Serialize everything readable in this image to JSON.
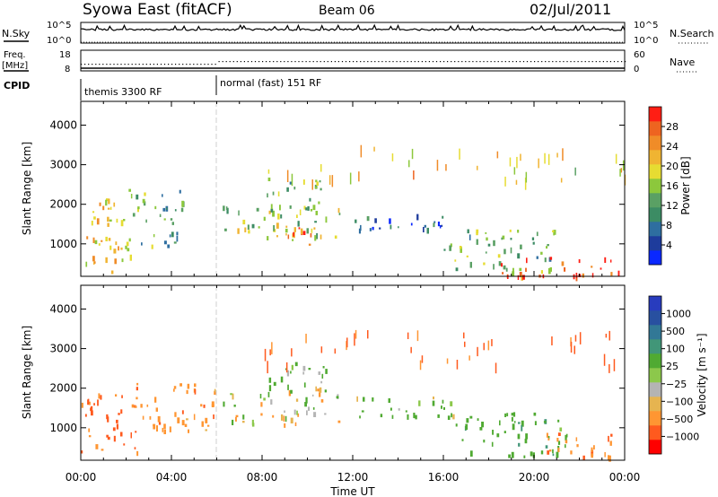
{
  "header": {
    "title": "Syowa East (fitACF)",
    "beam": "Beam 06",
    "date": "02/Jul/2011"
  },
  "top_panels": {
    "nsky_label": "N.Sky",
    "nsky_ticks": [
      "10^5",
      "10^0"
    ],
    "nsearch_label": "N.Search",
    "nsearch_ticks": [
      "10^5",
      "10^0"
    ],
    "freq_label": "Freq.",
    "freq_unit": "[MHz]",
    "freq_ticks": [
      "18",
      "8"
    ],
    "nave_label": "Nave",
    "nave_ticks": [
      "60",
      "0"
    ],
    "cpid_label": "CPID",
    "cpid_modes": [
      "themis 3300 RF",
      "normal (fast) 151 RF"
    ]
  },
  "colors": {
    "power": [
      "#0a28ff",
      "#1e3c9c",
      "#2e6ea0",
      "#3c8c64",
      "#5aa064",
      "#8cc83c",
      "#e6dc32",
      "#f0b432",
      "#f08c28",
      "#ee6420",
      "#ff1e14"
    ],
    "velocity": [
      "#ff0000",
      "#ff5a1e",
      "#ff9632",
      "#e6b450",
      "#b4b4b4",
      "#8cc84b",
      "#50aa32",
      "#419678",
      "#327896",
      "#2850a0",
      "#283cbe"
    ]
  },
  "chart_data": [
    {
      "type": "heatmap",
      "name": "power",
      "ylabel": "Slant Range [km]",
      "yticks": [
        "4000",
        "3000",
        "2000",
        "1000"
      ],
      "ylim": [
        180,
        4600
      ],
      "colorbar_label": "Power [dB]",
      "colorbar_ticks": [
        "28",
        "24",
        "20",
        "16",
        "12",
        "8",
        "4"
      ],
      "colorbar_range": [
        0,
        31
      ],
      "xlim": [
        "00:00",
        "24:00"
      ],
      "echo_regions": [
        {
          "t0": 0.0,
          "t1": 2.2,
          "r0": 300,
          "r1": 2200,
          "level": 20
        },
        {
          "t0": 2.0,
          "t1": 4.5,
          "r0": 900,
          "r1": 2400,
          "level": 12
        },
        {
          "t0": 6.2,
          "t1": 11.4,
          "r0": 1100,
          "r1": 2000,
          "level": 16
        },
        {
          "t0": 8.2,
          "t1": 10.6,
          "r0": 1900,
          "r1": 2700,
          "level": 13
        },
        {
          "t0": 9.0,
          "t1": 10.2,
          "r0": 1000,
          "r1": 1500,
          "level": 26
        },
        {
          "t0": 12.0,
          "t1": 16.2,
          "r0": 1350,
          "r1": 1800,
          "level": 6
        },
        {
          "t0": 16.0,
          "t1": 21.0,
          "r0": 300,
          "r1": 1400,
          "level": 14
        },
        {
          "t0": 18.5,
          "t1": 23.8,
          "r0": 200,
          "r1": 700,
          "level": 27
        }
      ]
    },
    {
      "type": "heatmap",
      "name": "velocity",
      "ylabel": "Slant Range [km]",
      "yticks": [
        "4000",
        "3000",
        "2000",
        "1000"
      ],
      "ylim": [
        180,
        4600
      ],
      "colorbar_label": "Velocity [m s⁻¹]",
      "colorbar_ticks": [
        "1000",
        "500",
        "100",
        "25",
        "−25",
        "−100",
        "−500",
        "−1000"
      ],
      "xlabel": "Time UT",
      "xticks": [
        "00:00",
        "04:00",
        "08:00",
        "12:00",
        "16:00",
        "20:00",
        "00:00"
      ],
      "xlim": [
        "00:00",
        "24:00"
      ],
      "echo_regions": [
        {
          "t0": 0.0,
          "t1": 2.5,
          "r0": 400,
          "r1": 1900,
          "level": -600
        },
        {
          "t0": 2.3,
          "t1": 6.0,
          "r0": 900,
          "r1": 2200,
          "level": -300
        },
        {
          "t0": 6.2,
          "t1": 11.4,
          "r0": 1100,
          "r1": 2000,
          "level": 0
        },
        {
          "t0": 8.3,
          "t1": 10.8,
          "r0": 1900,
          "r1": 2700,
          "level": 200
        },
        {
          "t0": 12.0,
          "t1": 16.5,
          "r0": 1300,
          "r1": 1800,
          "level": 150
        },
        {
          "t0": 16.5,
          "t1": 21.5,
          "r0": 300,
          "r1": 1400,
          "level": 300
        },
        {
          "t0": 20.5,
          "t1": 23.5,
          "r0": 250,
          "r1": 900,
          "level": -400
        }
      ]
    }
  ]
}
